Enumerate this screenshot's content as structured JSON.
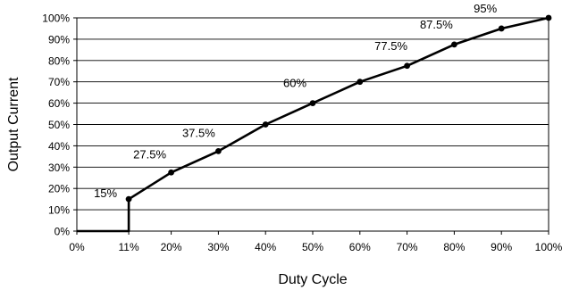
{
  "chart_data": {
    "type": "line",
    "title": "",
    "xlabel": "Duty Cycle",
    "ylabel": "Output Current",
    "xlim": [
      0,
      100
    ],
    "ylim": [
      0,
      100
    ],
    "x_unit": "%",
    "y_unit": "%",
    "grid": {
      "horizontal": true,
      "vertical": false
    },
    "legend": "none",
    "x_ticks": [
      0,
      11,
      20,
      30,
      40,
      50,
      60,
      70,
      80,
      90,
      100
    ],
    "x_tick_labels": [
      "0%",
      "11%",
      "20%",
      "30%",
      "40%",
      "50%",
      "60%",
      "70%",
      "80%",
      "90%",
      "100%"
    ],
    "y_ticks": [
      0,
      10,
      20,
      30,
      40,
      50,
      60,
      70,
      80,
      90,
      100
    ],
    "y_tick_labels": [
      "0%",
      "10%",
      "20%",
      "30%",
      "40%",
      "50%",
      "60%",
      "70%",
      "80%",
      "90%",
      "100%"
    ],
    "series": [
      {
        "color": "#000000",
        "line": [
          [
            0,
            0
          ],
          [
            11,
            0
          ],
          [
            11,
            15
          ],
          [
            20,
            27.5
          ],
          [
            30,
            37.5
          ],
          [
            40,
            50
          ],
          [
            50,
            60
          ],
          [
            60,
            70
          ],
          [
            70,
            77.5
          ],
          [
            80,
            87.5
          ],
          [
            90,
            95
          ],
          [
            100,
            100
          ]
        ],
        "points": [
          [
            11,
            15
          ],
          [
            20,
            27.5
          ],
          [
            30,
            37.5
          ],
          [
            40,
            50
          ],
          [
            50,
            60
          ],
          [
            60,
            70
          ],
          [
            70,
            77.5
          ],
          [
            80,
            87.5
          ],
          [
            90,
            95
          ],
          [
            100,
            100
          ]
        ]
      }
    ],
    "annotations": [
      {
        "text": "15%",
        "x": 11,
        "y": 15
      },
      {
        "text": "27.5%",
        "x": 20,
        "y": 27.5
      },
      {
        "text": "37.5%",
        "x": 30,
        "y": 37.5
      },
      {
        "text": "60%",
        "x": 50,
        "y": 60
      },
      {
        "text": "77.5%",
        "x": 70,
        "y": 77.5
      },
      {
        "text": "87.5%",
        "x": 80,
        "y": 87.5
      },
      {
        "text": "95%",
        "x": 90,
        "y": 95
      }
    ]
  }
}
